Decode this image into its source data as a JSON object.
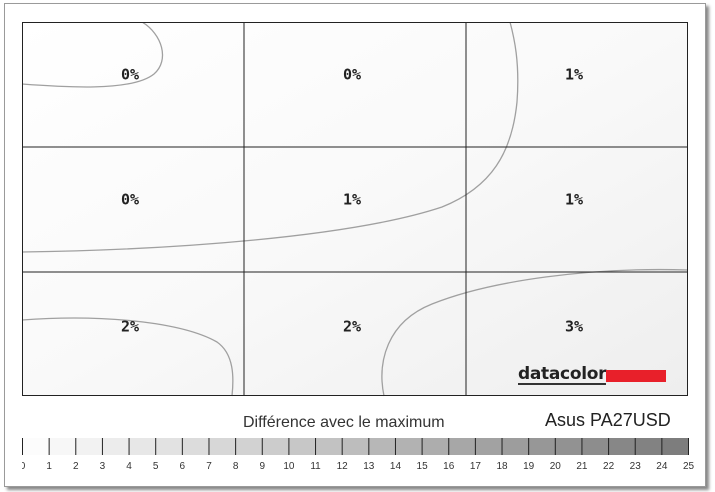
{
  "chart_data": {
    "type": "heatmap",
    "rows": 3,
    "cols": 3,
    "values": [
      [
        0,
        0,
        1
      ],
      [
        0,
        1,
        1
      ],
      [
        2,
        2,
        3
      ]
    ],
    "labels": [
      [
        "0%",
        "0%",
        "1%"
      ],
      [
        "0%",
        "1%",
        "1%"
      ],
      [
        "2%",
        "2%",
        "3%"
      ]
    ],
    "legend_title": "Différence avec le maximum",
    "scale_range": [
      0,
      25
    ],
    "scale_ticks": [
      "0",
      "1",
      "2",
      "3",
      "4",
      "5",
      "6",
      "7",
      "8",
      "9",
      "10",
      "11",
      "12",
      "13",
      "14",
      "15",
      "16",
      "17",
      "18",
      "19",
      "20",
      "21",
      "22",
      "23",
      "24",
      "25"
    ],
    "scale_colors": [
      "#ffffff",
      "#7a7a7a"
    ]
  },
  "model": "Asus PA27USD",
  "logo": "datacolor",
  "colors": {
    "logo_red": "#e8202a",
    "grid": "#222222",
    "contour": "#999999"
  }
}
